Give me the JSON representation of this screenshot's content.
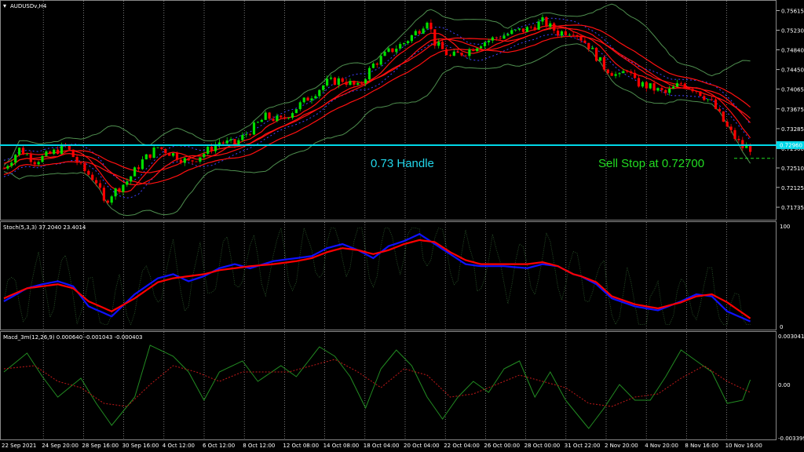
{
  "colors": {
    "background": "#000000",
    "bull": "#00e000",
    "bear": "#ff0000",
    "ma": "#ff1010",
    "bollinger": "#4f8f4f",
    "envelope": "#4040ff",
    "level": "#00d8e8",
    "stoch_main": "#1010ff",
    "stoch_signal": "#ff0000",
    "stoch_fast": "#2e5e2e",
    "macd_line": "#228b22",
    "macd_signal": "#c01818",
    "axis_text": "#ffffff",
    "annotation_handle": "#22d6ea",
    "annotation_stop": "#22dd22"
  },
  "chart_data": [
    {
      "type": "candlestick",
      "title": "AUDUSDv,H4",
      "symbol": "AUDUSDv",
      "timeframe": "H4",
      "ylim": [
        0.7155,
        0.757
      ],
      "yticks": [
        "0.75615",
        "0.75230",
        "0.74840",
        "0.74450",
        "0.74065",
        "0.73675",
        "0.73285",
        "0.72900",
        "0.72510",
        "0.72125",
        "0.71735"
      ],
      "xticks": [
        "22 Sep 2021",
        "24 Sep 20:00",
        "28 Sep 16:00",
        "30 Sep 16:00",
        "4 Oct 12:00",
        "6 Oct 12:00",
        "8 Oct 12:00",
        "12 Oct 08:00",
        "14 Oct 08:00",
        "18 Oct 04:00",
        "20 Oct 04:00",
        "22 Oct 04:00",
        "26 Oct 00:00",
        "28 Oct 00:00",
        "31 Oct 22:00",
        "2 Nov 20:00",
        "4 Nov 20:00",
        "8 Nov 16:00",
        "10 Nov 16:00"
      ],
      "price_anchors": [
        [
          0,
          0.725
        ],
        [
          4,
          0.7288
        ],
        [
          8,
          0.7265
        ],
        [
          12,
          0.7278
        ],
        [
          16,
          0.7295
        ],
        [
          20,
          0.7252
        ],
        [
          24,
          0.7225
        ],
        [
          26,
          0.7182
        ],
        [
          28,
          0.72
        ],
        [
          32,
          0.7225
        ],
        [
          36,
          0.7265
        ],
        [
          40,
          0.7292
        ],
        [
          44,
          0.7278
        ],
        [
          48,
          0.7262
        ],
        [
          52,
          0.728
        ],
        [
          56,
          0.7302
        ],
        [
          60,
          0.7298
        ],
        [
          64,
          0.7325
        ],
        [
          68,
          0.7352
        ],
        [
          72,
          0.7345
        ],
        [
          76,
          0.737
        ],
        [
          80,
          0.7395
        ],
        [
          84,
          0.742
        ],
        [
          88,
          0.7425
        ],
        [
          92,
          0.741
        ],
        [
          96,
          0.7455
        ],
        [
          100,
          0.748
        ],
        [
          104,
          0.7498
        ],
        [
          108,
          0.7525
        ],
        [
          110,
          0.7545
        ],
        [
          112,
          0.7498
        ],
        [
          116,
          0.747
        ],
        [
          120,
          0.748
        ],
        [
          124,
          0.7498
        ],
        [
          128,
          0.7508
        ],
        [
          132,
          0.7518
        ],
        [
          136,
          0.7525
        ],
        [
          140,
          0.754
        ],
        [
          144,
          0.7518
        ],
        [
          148,
          0.7522
        ],
        [
          152,
          0.7492
        ],
        [
          156,
          0.745
        ],
        [
          160,
          0.743
        ],
        [
          162,
          0.7448
        ],
        [
          164,
          0.742
        ],
        [
          168,
          0.741
        ],
        [
          172,
          0.7398
        ],
        [
          176,
          0.7418
        ],
        [
          180,
          0.7405
        ],
        [
          184,
          0.738
        ],
        [
          188,
          0.733
        ],
        [
          192,
          0.7292
        ],
        [
          194,
          0.729
        ]
      ],
      "levels": [
        {
          "name": "0.73 handle",
          "value": 0.7296,
          "label": "0.72960"
        },
        {
          "name": "sell stop",
          "value": 0.727
        }
      ],
      "indicators": [
        "Moving averages",
        "Bollinger bands",
        "Envelope"
      ],
      "annotations": [
        {
          "text": "0.73 Handle"
        },
        {
          "text": "Sell Stop at 0.72700"
        }
      ]
    },
    {
      "type": "line",
      "title": "Stoch(5,3,3) 37.2040 23.4014",
      "ylim": [
        0,
        100
      ],
      "yticks": [
        "100",
        "0"
      ],
      "series": [
        {
          "name": "main",
          "anchors": [
            [
              0,
              25
            ],
            [
              6,
              38
            ],
            [
              10,
              42
            ],
            [
              14,
              45
            ],
            [
              18,
              40
            ],
            [
              22,
              20
            ],
            [
              28,
              10
            ],
            [
              34,
              32
            ],
            [
              40,
              48
            ],
            [
              44,
              52
            ],
            [
              48,
              45
            ],
            [
              52,
              50
            ],
            [
              56,
              58
            ],
            [
              60,
              62
            ],
            [
              64,
              58
            ],
            [
              70,
              65
            ],
            [
              76,
              68
            ],
            [
              80,
              70
            ],
            [
              84,
              78
            ],
            [
              88,
              82
            ],
            [
              92,
              76
            ],
            [
              96,
              68
            ],
            [
              100,
              80
            ],
            [
              104,
              85
            ],
            [
              108,
              92
            ],
            [
              112,
              82
            ],
            [
              116,
              72
            ],
            [
              120,
              62
            ],
            [
              124,
              60
            ],
            [
              130,
              60
            ],
            [
              136,
              58
            ],
            [
              140,
              62
            ],
            [
              144,
              60
            ],
            [
              148,
              52
            ],
            [
              150,
              50
            ],
            [
              154,
              42
            ],
            [
              158,
              28
            ],
            [
              164,
              20
            ],
            [
              170,
              16
            ],
            [
              176,
              25
            ],
            [
              180,
              32
            ],
            [
              184,
              30
            ],
            [
              188,
              15
            ],
            [
              194,
              5
            ]
          ]
        },
        {
          "name": "signal",
          "anchors": [
            [
              0,
              28
            ],
            [
              6,
              38
            ],
            [
              10,
              40
            ],
            [
              14,
              42
            ],
            [
              18,
              38
            ],
            [
              22,
              25
            ],
            [
              28,
              15
            ],
            [
              34,
              28
            ],
            [
              40,
              44
            ],
            [
              44,
              48
            ],
            [
              48,
              50
            ],
            [
              52,
              52
            ],
            [
              56,
              56
            ],
            [
              60,
              58
            ],
            [
              64,
              60
            ],
            [
              70,
              62
            ],
            [
              76,
              65
            ],
            [
              80,
              68
            ],
            [
              84,
              74
            ],
            [
              88,
              78
            ],
            [
              92,
              76
            ],
            [
              96,
              72
            ],
            [
              100,
              76
            ],
            [
              104,
              82
            ],
            [
              108,
              86
            ],
            [
              112,
              84
            ],
            [
              116,
              74
            ],
            [
              120,
              66
            ],
            [
              124,
              62
            ],
            [
              130,
              62
            ],
            [
              136,
              62
            ],
            [
              140,
              64
            ],
            [
              144,
              60
            ],
            [
              148,
              52
            ],
            [
              150,
              50
            ],
            [
              154,
              44
            ],
            [
              158,
              30
            ],
            [
              164,
              22
            ],
            [
              170,
              18
            ],
            [
              176,
              24
            ],
            [
              180,
              30
            ],
            [
              184,
              32
            ],
            [
              188,
              24
            ],
            [
              194,
              8
            ]
          ]
        }
      ]
    },
    {
      "type": "line",
      "title": "Macd_3m(12,26,9) 0.000640 -0.001043 -0.000403",
      "ylim": [
        -0.0034,
        0.0031
      ],
      "yticks": [
        "0.003041",
        "0.00",
        "-0.003399"
      ],
      "series": [
        {
          "name": "macd",
          "anchors": [
            [
              0,
              0.0008
            ],
            [
              6,
              0.002
            ],
            [
              10,
              0.0005
            ],
            [
              14,
              -0.0008
            ],
            [
              20,
              0.0004
            ],
            [
              24,
              -0.0012
            ],
            [
              28,
              -0.0026
            ],
            [
              34,
              -0.0008
            ],
            [
              38,
              0.0025
            ],
            [
              44,
              0.0018
            ],
            [
              48,
              0.0008
            ],
            [
              52,
              -0.001
            ],
            [
              56,
              0.0008
            ],
            [
              62,
              0.0015
            ],
            [
              66,
              0.0002
            ],
            [
              72,
              0.0012
            ],
            [
              76,
              0.0005
            ],
            [
              82,
              0.0024
            ],
            [
              86,
              0.0018
            ],
            [
              90,
              0.0005
            ],
            [
              94,
              -0.0015
            ],
            [
              98,
              0.001
            ],
            [
              102,
              0.0022
            ],
            [
              106,
              0.0012
            ],
            [
              110,
              -0.0008
            ],
            [
              114,
              -0.0022
            ],
            [
              118,
              -0.0008
            ],
            [
              122,
              0.0002
            ],
            [
              126,
              -0.0005
            ],
            [
              130,
              0.001
            ],
            [
              134,
              0.0015
            ],
            [
              138,
              -0.0008
            ],
            [
              142,
              0.0008
            ],
            [
              146,
              -0.001
            ],
            [
              152,
              -0.0028
            ],
            [
              156,
              -0.0015
            ],
            [
              160,
              0.0
            ],
            [
              164,
              -0.001
            ],
            [
              168,
              -0.001
            ],
            [
              172,
              0.0005
            ],
            [
              176,
              0.0022
            ],
            [
              180,
              0.0015
            ],
            [
              184,
              0.0008
            ],
            [
              188,
              -0.0012
            ],
            [
              192,
              -0.001
            ],
            [
              194,
              0.0003
            ]
          ]
        },
        {
          "name": "signal",
          "anchors": [
            [
              0,
              0.001
            ],
            [
              8,
              0.0012
            ],
            [
              14,
              0.0002
            ],
            [
              20,
              -0.0002
            ],
            [
              26,
              -0.0012
            ],
            [
              32,
              -0.0014
            ],
            [
              38,
              0.0
            ],
            [
              44,
              0.0012
            ],
            [
              50,
              0.0008
            ],
            [
              56,
              0.0002
            ],
            [
              62,
              0.0008
            ],
            [
              68,
              0.0008
            ],
            [
              74,
              0.0008
            ],
            [
              80,
              0.0012
            ],
            [
              86,
              0.0016
            ],
            [
              92,
              0.0008
            ],
            [
              98,
              -0.0002
            ],
            [
              104,
              0.001
            ],
            [
              110,
              0.0006
            ],
            [
              116,
              -0.0008
            ],
            [
              122,
              -0.0006
            ],
            [
              128,
              0.0
            ],
            [
              134,
              0.0006
            ],
            [
              140,
              0.0002
            ],
            [
              146,
              -0.0002
            ],
            [
              152,
              -0.0012
            ],
            [
              158,
              -0.0014
            ],
            [
              164,
              -0.0008
            ],
            [
              170,
              -0.0006
            ],
            [
              176,
              0.0004
            ],
            [
              182,
              0.0012
            ],
            [
              188,
              0.0002
            ],
            [
              194,
              -0.0005
            ]
          ]
        }
      ]
    }
  ]
}
